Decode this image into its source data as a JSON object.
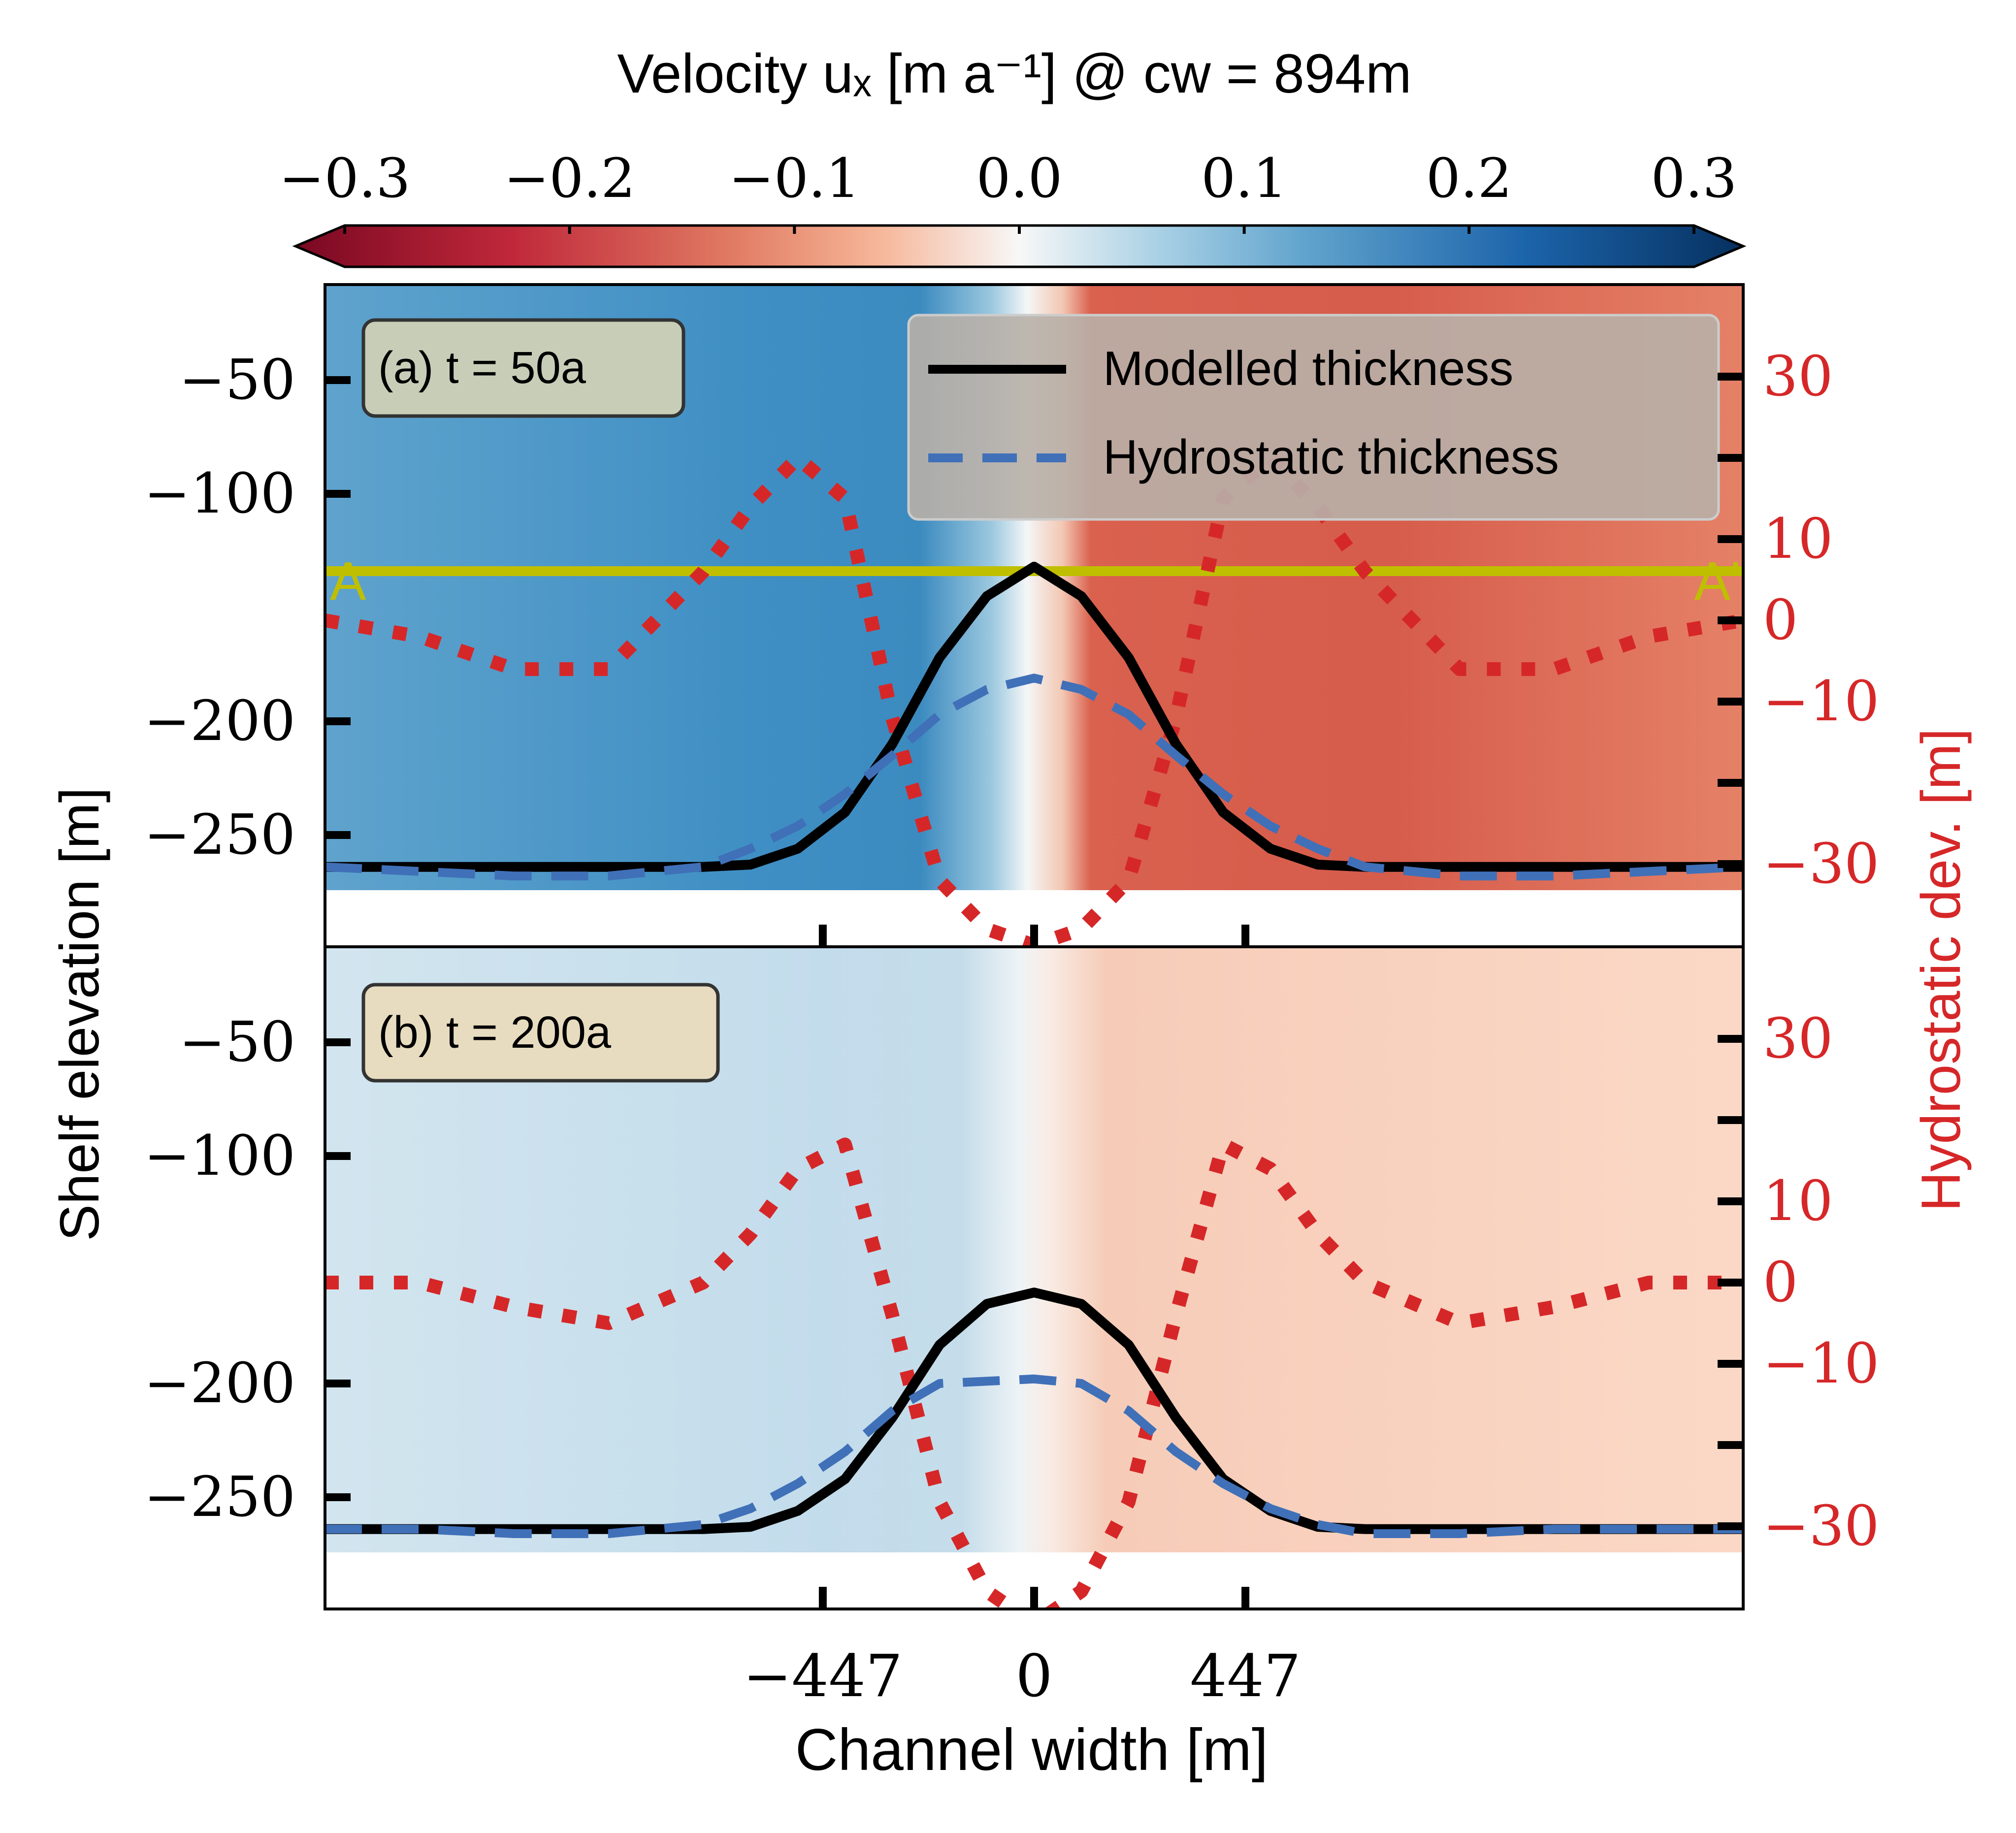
{
  "colorbar": {
    "title": "Velocity uₓ [m a⁻¹] @ cw = 894m",
    "ticks": [
      "−0.3",
      "−0.2",
      "−0.1",
      "0.0",
      "0.1",
      "0.2",
      "0.3"
    ],
    "colormap": "RdBu",
    "range": [
      -0.3,
      0.3
    ],
    "extend": "both"
  },
  "axes": {
    "ylabel_left": "Shelf elevation [m]",
    "ylabel_right": "Hydrostatic dev. [m]",
    "xlabel": "Channel width [m]",
    "xticks": [
      "−447",
      "0",
      "447"
    ],
    "right_axis_color": "#d62728"
  },
  "legend": {
    "items": [
      {
        "label": "Modelled thickness",
        "color": "#000000",
        "style": "solid"
      },
      {
        "label": "Hydrostatic thickness",
        "color": "#4070b8",
        "style": "dashed"
      }
    ]
  },
  "section_line": {
    "start_label": "A",
    "end_label": "A'",
    "color": "#bfbf00"
  },
  "panels": [
    {
      "label": "(a) t = 50a",
      "yticks_left": [
        "−50",
        "−100",
        "−200",
        "−250"
      ],
      "yticks_right": [
        "30",
        "10",
        "0",
        "−10",
        "−30"
      ]
    },
    {
      "label": "(b) t = 200a",
      "yticks_left": [
        "−50",
        "−100",
        "−200",
        "−250"
      ],
      "yticks_right": [
        "30",
        "10",
        "0",
        "−10",
        "−30"
      ]
    }
  ],
  "chart_data": [
    {
      "type": "line",
      "panel": "(a) t = 50a",
      "x": [
        -1500,
        -1300,
        -1100,
        -900,
        -700,
        -600,
        -500,
        -400,
        -300,
        -200,
        -100,
        0,
        100,
        200,
        300,
        400,
        500,
        600,
        700,
        900,
        1100,
        1300,
        1500
      ],
      "series": [
        {
          "name": "Modelled thickness",
          "axis": "left",
          "values": [
            -264,
            -264,
            -264,
            -264,
            -264,
            -263,
            -256,
            -240,
            -210,
            -172,
            -145,
            -132,
            -145,
            -172,
            -210,
            -240,
            -256,
            -263,
            -264,
            -264,
            -264,
            -264,
            -264
          ]
        },
        {
          "name": "Hydrostatic thickness",
          "axis": "left",
          "values": [
            -264,
            -266,
            -268,
            -268,
            -264,
            -256,
            -246,
            -232,
            -215,
            -197,
            -186,
            -181,
            -186,
            -197,
            -215,
            -232,
            -246,
            -256,
            -264,
            -268,
            -268,
            -266,
            -264
          ]
        },
        {
          "name": "Hydrostatic deviation",
          "axis": "right",
          "values": [
            0,
            -2,
            -6,
            -6,
            6,
            14,
            20,
            15,
            -12,
            -32,
            -38,
            -40,
            -38,
            -32,
            -12,
            15,
            20,
            14,
            6,
            -6,
            -6,
            -2,
            0
          ]
        }
      ],
      "background_velocity": {
        "left": 0.2,
        "right": -0.23
      }
    },
    {
      "type": "line",
      "panel": "(b) t = 200a",
      "x": [
        -1500,
        -1300,
        -1100,
        -900,
        -700,
        -600,
        -500,
        -400,
        -300,
        -200,
        -100,
        0,
        100,
        200,
        300,
        400,
        500,
        600,
        700,
        900,
        1100,
        1300,
        1500
      ],
      "series": [
        {
          "name": "Modelled thickness",
          "axis": "left",
          "values": [
            -264,
            -264,
            -264,
            -264,
            -264,
            -263,
            -256,
            -242,
            -215,
            -183,
            -165,
            -160,
            -165,
            -183,
            -215,
            -242,
            -256,
            -263,
            -264,
            -264,
            -264,
            -264,
            -264
          ]
        },
        {
          "name": "Hydrostatic thickness",
          "axis": "left",
          "values": [
            -264,
            -264,
            -266,
            -266,
            -262,
            -255,
            -244,
            -230,
            -212,
            -200,
            -199,
            -198,
            -200,
            -212,
            -230,
            -244,
            -255,
            -262,
            -266,
            -266,
            -264,
            -264,
            -264
          ]
        },
        {
          "name": "Hydrostatic deviation",
          "axis": "right",
          "values": [
            0,
            0,
            -3,
            -5,
            0,
            6,
            14,
            17,
            -4,
            -27,
            -38,
            -42,
            -38,
            -27,
            -4,
            17,
            14,
            6,
            0,
            -5,
            -3,
            0,
            0
          ]
        }
      ],
      "background_velocity": {
        "left": 0.06,
        "right": -0.06
      }
    }
  ]
}
